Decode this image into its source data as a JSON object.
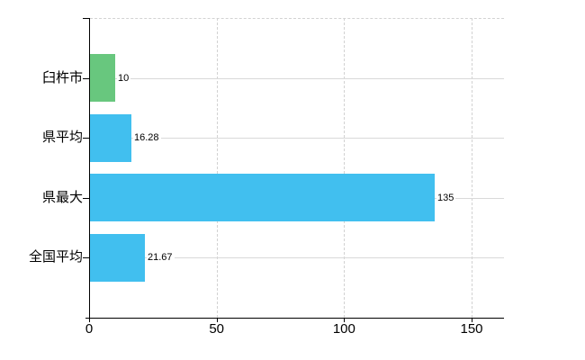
{
  "chart_data": {
    "type": "bar",
    "orientation": "horizontal",
    "title": "",
    "xlabel": "",
    "ylabel": "",
    "categories": [
      "臼杵市",
      "県平均",
      "県最大",
      "全国平均"
    ],
    "values": [
      10,
      16.28,
      135,
      21.67
    ],
    "value_labels": [
      "10",
      "16.28",
      "135",
      "21.67"
    ],
    "bar_colors": [
      "#68c77e",
      "#41bfef",
      "#41bfef",
      "#41bfef"
    ],
    "xticks": [
      0,
      50,
      100,
      150
    ],
    "xtick_labels": [
      "0",
      "50",
      "100",
      "150"
    ],
    "xlim": [
      0,
      162.35
    ],
    "grid": true,
    "gridline_style": "vertical-dashed, horizontal-solid at category centers",
    "legend": false
  },
  "colors": {
    "highlight_bar": "#68c77e",
    "default_bar": "#41bfef",
    "gridline": "#d9d9d9",
    "dashed_gridline": "#d2d2d2",
    "axis": "#000000",
    "background": "#ffffff",
    "text": "#000000"
  }
}
